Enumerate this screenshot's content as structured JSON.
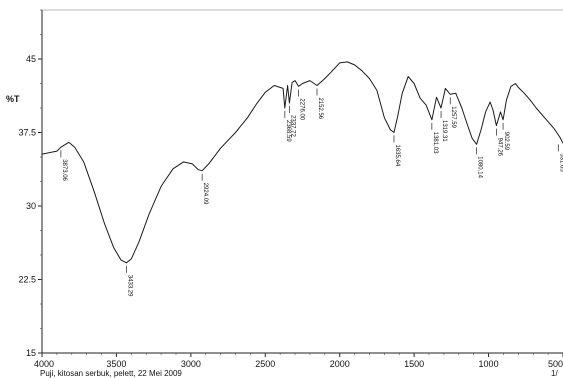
{
  "chart_data": {
    "type": "line",
    "ylabel": "%T",
    "xlim": [
      4000,
      500
    ],
    "ylim": [
      15,
      50
    ],
    "x_ticks": [
      "4000",
      "3500",
      "3000",
      "2500",
      "2000",
      "1500",
      "1000",
      "500"
    ],
    "y_ticks": [
      "45",
      "37.5",
      "30",
      "22.5",
      "15"
    ],
    "series": [
      {
        "x": [
          4000,
          3900,
          3873.06,
          3820,
          3780,
          3720,
          3650,
          3580,
          3520,
          3470,
          3433.29,
          3400,
          3350,
          3280,
          3200,
          3120,
          3050,
          2990,
          2950,
          2924.09,
          2880,
          2800,
          2700,
          2620,
          2560,
          2500,
          2440,
          2380,
          2368.59,
          2350,
          2337.72,
          2320,
          2300,
          2276.0,
          2250,
          2200,
          2152.56,
          2100,
          2050,
          2000,
          1950,
          1900,
          1850,
          1800,
          1750,
          1700,
          1660,
          1635.64,
          1610,
          1580,
          1540,
          1500,
          1460,
          1420,
          1381.03,
          1350,
          1319.31,
          1290,
          1257.59,
          1220,
          1180,
          1140,
          1110,
          1080.14,
          1050,
          1020,
          990,
          970,
          947.26,
          920,
          902.59,
          880,
          850,
          820,
          800,
          760,
          720,
          680,
          640,
          600,
          560,
          520,
          500
        ],
        "y": [
          35.3,
          35.6,
          36.0,
          36.5,
          36.0,
          34.5,
          31.5,
          28.2,
          25.8,
          24.5,
          24.2,
          24.6,
          26.3,
          29.2,
          32.0,
          33.8,
          34.5,
          34.3,
          33.7,
          33.6,
          34.3,
          35.9,
          37.5,
          39.0,
          40.4,
          41.6,
          42.3,
          42.0,
          40.0,
          42.3,
          40.5,
          42.6,
          42.8,
          42.2,
          42.5,
          42.8,
          42.3,
          43.0,
          43.8,
          44.6,
          44.7,
          44.4,
          43.8,
          43.0,
          41.8,
          39.0,
          37.8,
          37.5,
          39.2,
          41.5,
          43.2,
          42.5,
          41.0,
          40.3,
          38.8,
          41.1,
          40.0,
          42.0,
          41.4,
          41.5,
          40.0,
          38.2,
          36.9,
          36.3,
          37.8,
          39.6,
          40.6,
          39.8,
          38.2,
          39.6,
          38.8,
          40.8,
          42.2,
          42.5,
          42.1,
          41.5,
          40.8,
          40.0,
          39.3,
          38.6,
          37.9,
          37.0,
          36.4
        ]
      }
    ],
    "peak_labels": [
      "3873.06",
      "3433.29",
      "2924.09",
      "2368.59",
      "2337.72",
      "2276.00",
      "2152.56",
      "1635.64",
      "1381.03",
      "1319.31",
      "1257.59",
      "1080.14",
      "947.26",
      "902.59",
      "531.65"
    ],
    "peaks": [
      {
        "x": 3873.06,
        "y": 36.0
      },
      {
        "x": 3433.29,
        "y": 24.2
      },
      {
        "x": 2924.09,
        "y": 33.6
      },
      {
        "x": 2368.59,
        "y": 40.0
      },
      {
        "x": 2337.72,
        "y": 40.5
      },
      {
        "x": 2276.0,
        "y": 42.2
      },
      {
        "x": 2152.56,
        "y": 42.3
      },
      {
        "x": 1635.64,
        "y": 37.5
      },
      {
        "x": 1381.03,
        "y": 38.8
      },
      {
        "x": 1319.31,
        "y": 40.0
      },
      {
        "x": 1257.59,
        "y": 41.4
      },
      {
        "x": 1080.14,
        "y": 36.3
      },
      {
        "x": 947.26,
        "y": 38.2
      },
      {
        "x": 902.59,
        "y": 38.8
      },
      {
        "x": 531.65,
        "y": 36.6
      }
    ],
    "grid": false
  },
  "footer": {
    "left_text": "Puji, kitosan serbuk, pelett, 22 Mei 2009",
    "right_text": "1/"
  }
}
